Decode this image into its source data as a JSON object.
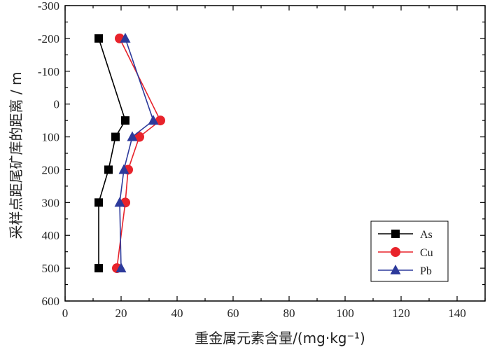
{
  "chart_data": {
    "type": "line",
    "xlabel": "重金属元素含量/(mg·kg⁻¹)",
    "ylabel": "采样点距尾矿库的距离 / m",
    "xlim": [
      0,
      150
    ],
    "ylim": [
      -300,
      600
    ],
    "y_inverted": true,
    "x_ticks": [
      "0",
      "20",
      "40",
      "60",
      "80",
      "100",
      "120",
      "140"
    ],
    "y_ticks": [
      "-300",
      "-200",
      "-100",
      "0",
      "100",
      "200",
      "300",
      "400",
      "500",
      "600"
    ],
    "legend_position": "bottom-right",
    "series": [
      {
        "name": "As",
        "color": "#000000",
        "marker": "square",
        "points": [
          {
            "x": 12,
            "y": -200
          },
          {
            "x": 21.5,
            "y": 50
          },
          {
            "x": 18,
            "y": 100
          },
          {
            "x": 15.5,
            "y": 200
          },
          {
            "x": 12,
            "y": 300
          },
          {
            "x": 12,
            "y": 500
          }
        ]
      },
      {
        "name": "Cu",
        "color": "#e8232b",
        "marker": "circle",
        "points": [
          {
            "x": 19.5,
            "y": -200
          },
          {
            "x": 34,
            "y": 50
          },
          {
            "x": 26.5,
            "y": 100
          },
          {
            "x": 22.5,
            "y": 200
          },
          {
            "x": 21.5,
            "y": 300
          },
          {
            "x": 18.5,
            "y": 500
          }
        ]
      },
      {
        "name": "Pb",
        "color": "#2d3a9b",
        "marker": "triangle",
        "points": [
          {
            "x": 21.5,
            "y": -200
          },
          {
            "x": 31.5,
            "y": 50
          },
          {
            "x": 24,
            "y": 100
          },
          {
            "x": 21,
            "y": 200
          },
          {
            "x": 19.5,
            "y": 300
          },
          {
            "x": 20,
            "y": 500
          }
        ]
      }
    ]
  }
}
